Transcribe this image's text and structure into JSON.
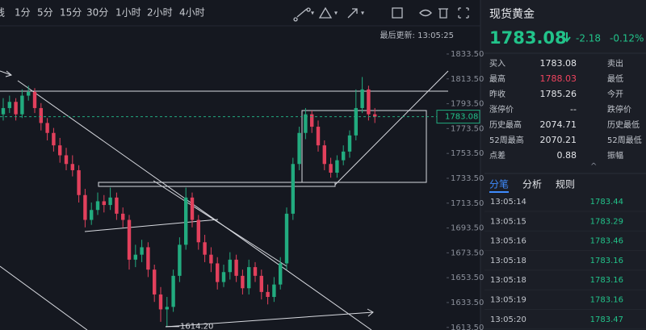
{
  "toolbar": {
    "partial_label": "线",
    "timeframes": [
      "1分",
      "5分",
      "15分",
      "30分",
      "1小时",
      "2小时",
      "4小时"
    ]
  },
  "last_update": "最后更新: 13:05:25",
  "chart": {
    "type": "candlestick",
    "ylim": [
      1611.4,
      1856.2
    ],
    "yticks": [
      {
        "value": 1833.5,
        "label": "1833.50"
      },
      {
        "value": 1813.5,
        "label": "1813.50"
      },
      {
        "value": 1793.5,
        "label": "1793.50"
      },
      {
        "value": 1773.5,
        "label": "1773.50"
      },
      {
        "value": 1753.5,
        "label": "1753.50"
      },
      {
        "value": 1733.5,
        "label": "1733.50"
      },
      {
        "value": 1713.5,
        "label": "1713.50"
      },
      {
        "value": 1693.5,
        "label": "1693.50"
      },
      {
        "value": 1673.5,
        "label": "1673.50"
      },
      {
        "value": 1653.5,
        "label": "1653.50"
      },
      {
        "value": 1633.5,
        "label": "1633.50"
      },
      {
        "value": 1613.5,
        "label": "1613.50"
      }
    ],
    "current_price": {
      "value": 1783.08,
      "label": "1783.08"
    },
    "low_marker": {
      "value": 1614.2,
      "label": "1614.20"
    },
    "up_color": "#22ab7f",
    "down_color": "#e2405c",
    "candles": [
      [
        1785,
        1798,
        1780,
        1790
      ],
      [
        1790,
        1800,
        1786,
        1795
      ],
      [
        1795,
        1798,
        1780,
        1785
      ],
      [
        1785,
        1805,
        1782,
        1800
      ],
      [
        1800,
        1808,
        1796,
        1803
      ],
      [
        1803,
        1806,
        1786,
        1790
      ],
      [
        1790,
        1794,
        1772,
        1778
      ],
      [
        1778,
        1782,
        1764,
        1770
      ],
      [
        1770,
        1774,
        1755,
        1760
      ],
      [
        1760,
        1766,
        1746,
        1752
      ],
      [
        1752,
        1758,
        1740,
        1745
      ],
      [
        1745,
        1752,
        1735,
        1740
      ],
      [
        1740,
        1744,
        1714,
        1720
      ],
      [
        1720,
        1725,
        1694,
        1700
      ],
      [
        1700,
        1714,
        1696,
        1708
      ],
      [
        1708,
        1722,
        1704,
        1715
      ],
      [
        1715,
        1720,
        1706,
        1712
      ],
      [
        1712,
        1726,
        1708,
        1718
      ],
      [
        1718,
        1722,
        1700,
        1705
      ],
      [
        1705,
        1710,
        1694,
        1700
      ],
      [
        1700,
        1704,
        1660,
        1668
      ],
      [
        1668,
        1680,
        1662,
        1672
      ],
      [
        1672,
        1684,
        1666,
        1678
      ],
      [
        1678,
        1682,
        1654,
        1660
      ],
      [
        1660,
        1664,
        1634,
        1640
      ],
      [
        1640,
        1646,
        1618,
        1628
      ],
      [
        1628,
        1638,
        1614.2,
        1630
      ],
      [
        1630,
        1660,
        1626,
        1655
      ],
      [
        1655,
        1686,
        1650,
        1680
      ],
      [
        1680,
        1726,
        1676,
        1718
      ],
      [
        1718,
        1722,
        1694,
        1700
      ],
      [
        1700,
        1704,
        1676,
        1682
      ],
      [
        1682,
        1688,
        1666,
        1672
      ],
      [
        1672,
        1678,
        1658,
        1665
      ],
      [
        1665,
        1670,
        1644,
        1650
      ],
      [
        1650,
        1664,
        1646,
        1658
      ],
      [
        1658,
        1674,
        1652,
        1668
      ],
      [
        1668,
        1672,
        1650,
        1655
      ],
      [
        1655,
        1660,
        1640,
        1645
      ],
      [
        1645,
        1668,
        1640,
        1662
      ],
      [
        1662,
        1666,
        1650,
        1655
      ],
      [
        1655,
        1660,
        1636,
        1642
      ],
      [
        1642,
        1648,
        1632,
        1638
      ],
      [
        1638,
        1654,
        1634,
        1648
      ],
      [
        1648,
        1670,
        1644,
        1665
      ],
      [
        1665,
        1710,
        1660,
        1705
      ],
      [
        1705,
        1750,
        1700,
        1745
      ],
      [
        1745,
        1775,
        1740,
        1770
      ],
      [
        1770,
        1790,
        1765,
        1785
      ],
      [
        1785,
        1788,
        1770,
        1775
      ],
      [
        1775,
        1780,
        1755,
        1760
      ],
      [
        1760,
        1764,
        1740,
        1745
      ],
      [
        1745,
        1750,
        1734,
        1738
      ],
      [
        1738,
        1752,
        1734,
        1748
      ],
      [
        1748,
        1760,
        1744,
        1755
      ],
      [
        1755,
        1772,
        1750,
        1768
      ],
      [
        1768,
        1805,
        1764,
        1790
      ],
      [
        1790,
        1815,
        1786,
        1805
      ],
      [
        1805,
        1808,
        1780,
        1785
      ],
      [
        1785,
        1790,
        1778,
        1783.08
      ]
    ]
  },
  "quote": {
    "name": "现货黄金",
    "price": "1783.08",
    "change": "-2.18",
    "change_pct": "-0.12%",
    "rows": [
      [
        "买入",
        "1783.08",
        "卖出"
      ],
      [
        "最高",
        "1788.03",
        "最低"
      ],
      [
        "昨收",
        "1785.26",
        "今开"
      ],
      [
        "涨停价",
        "--",
        "跌停价"
      ],
      [
        "历史最高",
        "2074.71",
        "历史最低"
      ],
      [
        "52周最高",
        "2070.21",
        "52周最低"
      ],
      [
        "点差",
        "0.88",
        "振幅"
      ]
    ],
    "tabs": [
      "分笔",
      "分析",
      "规则"
    ],
    "ticks": [
      [
        "13:05:14",
        "1783.44"
      ],
      [
        "13:05:15",
        "1783.29"
      ],
      [
        "13:05:16",
        "1783.46"
      ],
      [
        "13:05:18",
        "1783.16"
      ],
      [
        "13:05:18",
        "1783.16"
      ],
      [
        "13:05:19",
        "1783.16"
      ],
      [
        "13:05:20",
        "1783.47"
      ]
    ]
  }
}
